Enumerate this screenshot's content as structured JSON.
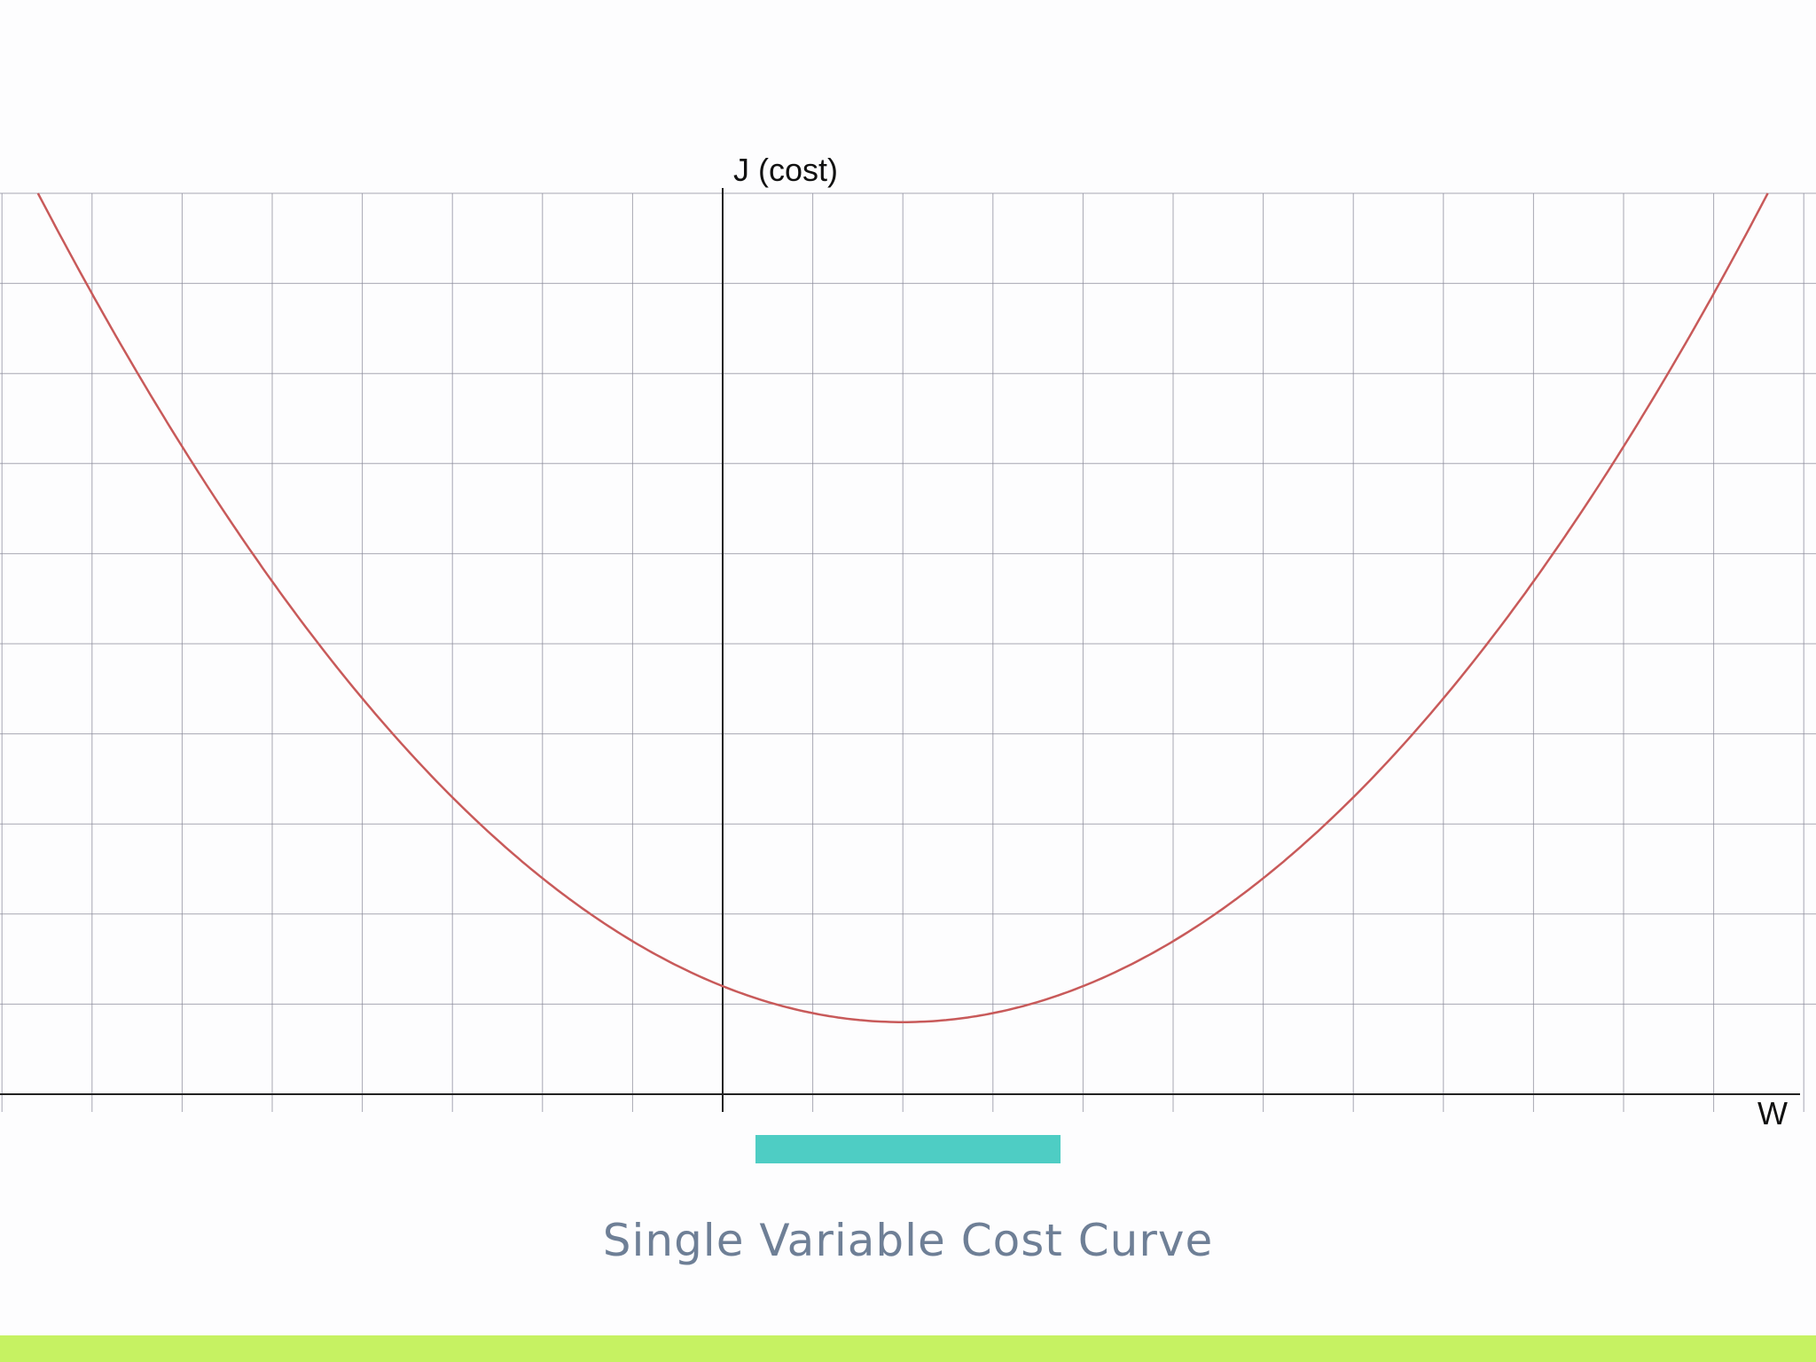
{
  "chart_data": {
    "type": "line",
    "ylabel": "J (cost)",
    "xlabel": "W",
    "xlim": [
      -8,
      12
    ],
    "ylim": [
      0,
      10
    ],
    "grid": true,
    "grid_step": 1,
    "series": [
      {
        "color": "#c85a5a",
        "function": "quadratic",
        "vertex": [
          2,
          0.8
        ],
        "x": [
          -7.6,
          -7,
          -6,
          -5,
          -4,
          -3,
          -2,
          -1,
          0,
          1,
          2,
          3,
          4,
          5,
          6,
          7,
          8,
          9,
          10,
          11,
          11.6
        ],
        "y": [
          10,
          9.2,
          7.9,
          6.7,
          5.6,
          4.5,
          3.4,
          2.5,
          1.2,
          0.9,
          0.8,
          0.9,
          1.2,
          1.7,
          2.4,
          3.3,
          4.4,
          5.6,
          7.0,
          8.8,
          10
        ]
      }
    ]
  },
  "caption": {
    "text": "Single Variable Cost Curve",
    "color": "#6e7f96"
  },
  "colors": {
    "accent": "#4ecdc4",
    "footer": "#c6f262",
    "grid": "#8a8a9a",
    "curve": "#c85a5a"
  }
}
